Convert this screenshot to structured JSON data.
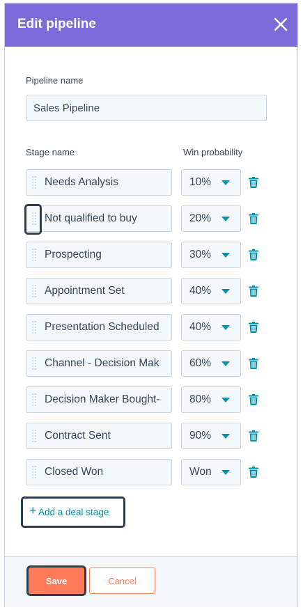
{
  "header": {
    "title": "Edit pipeline",
    "close_icon": "close-icon"
  },
  "pipeline": {
    "label": "Pipeline name",
    "value": "Sales Pipeline"
  },
  "columns": {
    "stage": "Stage name",
    "probability": "Win probability"
  },
  "stages": [
    {
      "name": "Needs Analysis",
      "probability": "10%"
    },
    {
      "name": "Not qualified to buy",
      "probability": "20%"
    },
    {
      "name": "Prospecting",
      "probability": "30%"
    },
    {
      "name": "Appointment Set",
      "probability": "40%"
    },
    {
      "name": "Presentation Scheduled",
      "probability": "40%"
    },
    {
      "name": "Channel - Decision Mak",
      "probability": "60%"
    },
    {
      "name": "Decision Maker Bought-",
      "probability": "80%"
    },
    {
      "name": "Contract Sent",
      "probability": "90%"
    },
    {
      "name": "Closed Won",
      "probability": "Won"
    }
  ],
  "add_stage": {
    "label": "Add a deal stage"
  },
  "footer": {
    "save": "Save",
    "cancel": "Cancel"
  },
  "colors": {
    "header": "#7c6ad8",
    "accent": "#0091ae",
    "primary_button": "#ff7a59",
    "text": "#33475b"
  }
}
